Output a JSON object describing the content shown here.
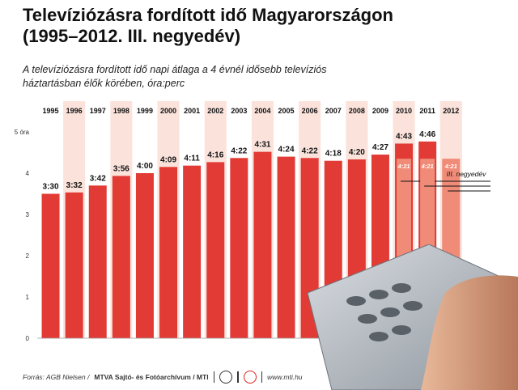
{
  "header": {
    "title_line1": "Televíziózásra fordított idő Magyarországon",
    "title_line2": "(1995–2012. III. negyedév)",
    "subtitle_line1": "A televíziózásra fordított idő napi átlaga a 4 évnél idősebb televíziós",
    "subtitle_line2": "háztartásban élők körében, óra:perc"
  },
  "footer": {
    "source": "Forrás: AGB Nielsen /",
    "agency": "MTVA Sajtó- és Fotóarchívum / MTI",
    "url": "www.mti.hu"
  },
  "colors": {
    "bar": "#e23b36",
    "bar_light": "#f08b78",
    "highlight_column": "#fbe3dc",
    "axis_text": "#333333"
  },
  "chart_data": {
    "type": "bar",
    "categories": [
      "1995",
      "1996",
      "1997",
      "1998",
      "1999",
      "2000",
      "2001",
      "2002",
      "2003",
      "2004",
      "2005",
      "2006",
      "2007",
      "2008",
      "2009",
      "2010",
      "2011",
      "2012"
    ],
    "values": [
      3.5,
      3.533,
      3.7,
      3.933,
      4.0,
      4.15,
      4.183,
      4.267,
      4.367,
      4.517,
      4.4,
      4.367,
      4.3,
      4.333,
      4.45,
      4.717,
      4.767,
      4.35
    ],
    "labels": [
      "3:30",
      "3:32",
      "3:42",
      "3:56",
      "4:00",
      "4:09",
      "4:11",
      "4:16",
      "4:22",
      "4:31",
      "4:24",
      "4:22",
      "4:18",
      "4:20",
      "4:27",
      "4:43",
      "4:46",
      ""
    ],
    "highlighted_columns": [
      "1996",
      "1998",
      "2000",
      "2002",
      "2004",
      "2006",
      "2008",
      "2010",
      "2012"
    ],
    "series_q3": {
      "name": "III. negyedév",
      "categories": [
        "2010",
        "2011",
        "2012"
      ],
      "values": [
        4.35,
        4.35,
        4.35
      ],
      "labels": [
        "4:21",
        "4:21",
        "4:21"
      ]
    },
    "ylabel_top": "5 óra",
    "yticks": [
      0,
      1,
      2,
      3,
      4,
      5
    ],
    "ytick_labels": [
      "0",
      "1",
      "2",
      "3",
      "4",
      "5 óra"
    ],
    "ylim": [
      0,
      5
    ],
    "grid": false
  }
}
